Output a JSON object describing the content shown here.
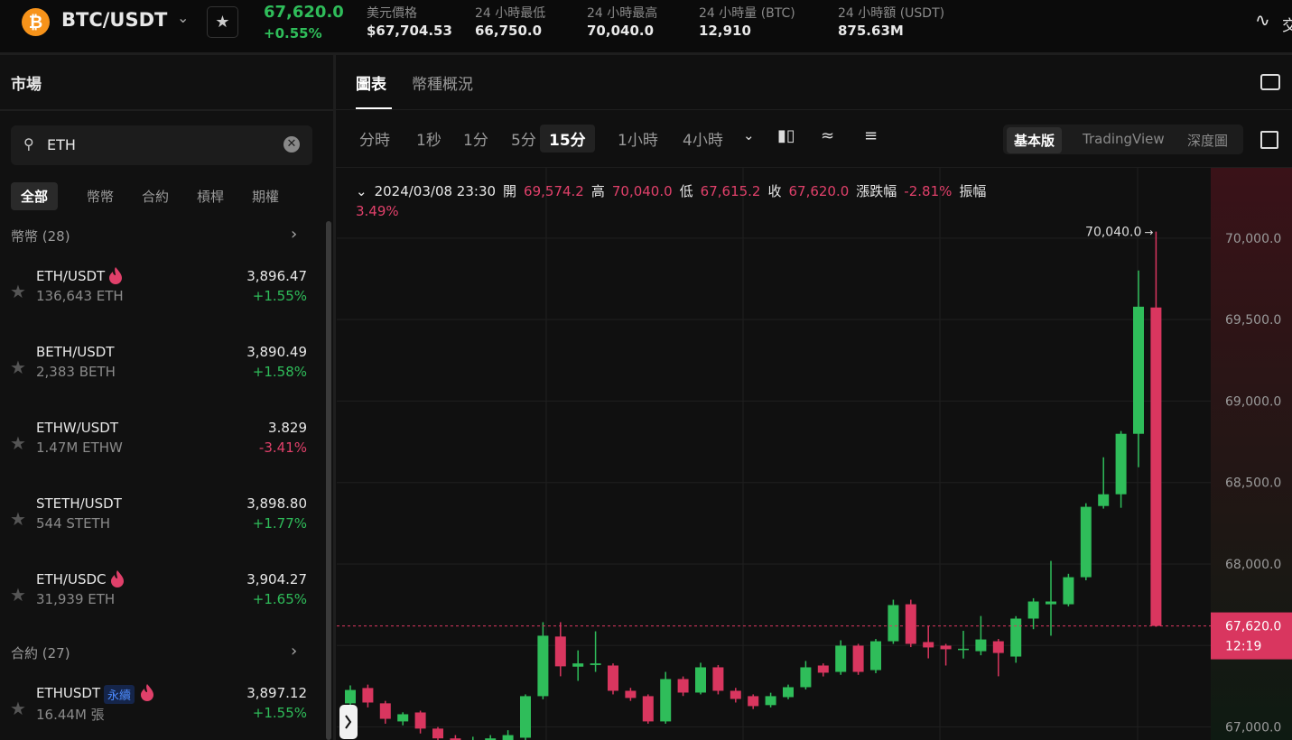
{
  "header": {
    "symbol": "BTC/USDT",
    "price": "67,620.0",
    "change": "+0.55%",
    "stats": [
      {
        "label": "美元價格",
        "value": "$67,704.53"
      },
      {
        "label": "24 小時最低",
        "value": "66,750.0"
      },
      {
        "label": "24 小時最高",
        "value": "70,040.0"
      },
      {
        "label": "24 小時量 (BTC)",
        "value": "12,910"
      },
      {
        "label": "24 小時額 (USDT)",
        "value": "875.63M"
      }
    ],
    "cut_text": "交"
  },
  "sidebar": {
    "title": "市場",
    "search": "ETH",
    "tabs": [
      "全部",
      "幣幣",
      "合約",
      "槓桿",
      "期權"
    ],
    "sections": [
      {
        "title": "幣幣 (28)",
        "items": [
          {
            "pair": "ETH/USDT",
            "volume": "136,643 ETH",
            "price": "3,896.47",
            "change": "+1.55%",
            "hot": true
          },
          {
            "pair": "BETH/USDT",
            "volume": "2,383 BETH",
            "price": "3,890.49",
            "change": "+1.58%",
            "hot": false
          },
          {
            "pair": "ETHW/USDT",
            "volume": "1.47M ETHW",
            "price": "3.829",
            "change": "-3.41%",
            "hot": false
          },
          {
            "pair": "STETH/USDT",
            "volume": "544 STETH",
            "price": "3,898.80",
            "change": "+1.77%",
            "hot": false
          },
          {
            "pair": "ETH/USDC",
            "volume": "31,939 ETH",
            "price": "3,904.27",
            "change": "+1.65%",
            "hot": true
          }
        ]
      },
      {
        "title": "合約 (27)",
        "items": [
          {
            "pair": "ETHUSDT",
            "badge": "永續",
            "volume": "16.44M 張",
            "price": "3,897.12",
            "change": "+1.55%",
            "hot": true
          }
        ]
      }
    ]
  },
  "main": {
    "tabs": [
      "圖表",
      "幣種概況"
    ],
    "intervals": [
      "分時",
      "1秒",
      "1分",
      "5分",
      "15分",
      "1小時",
      "4小時"
    ],
    "views": [
      "基本版",
      "TradingView",
      "深度圖"
    ]
  },
  "info": {
    "datetime": "2024/03/08 23:30",
    "items": [
      {
        "label": "開",
        "value": "69,574.2"
      },
      {
        "label": "高",
        "value": "70,040.0"
      },
      {
        "label": "低",
        "value": "67,615.2"
      },
      {
        "label": "收",
        "value": "67,620.0"
      },
      {
        "label": "漲跌幅",
        "value": "-2.81%"
      },
      {
        "label": "振幅",
        "value": "3.49%"
      }
    ]
  },
  "chart_data": {
    "type": "candlestick",
    "up_color": "#2fbd5a",
    "down_color": "#d9365f",
    "ylim": [
      66920,
      70420
    ],
    "yticks": [
      {
        "value": 67000,
        "label": "67,000.0"
      },
      {
        "value": 67500,
        "label": "67,500.0"
      },
      {
        "value": 68000,
        "label": "68,000.0"
      },
      {
        "value": 68500,
        "label": "68,500.0"
      },
      {
        "value": 69000,
        "label": "69,000.0"
      },
      {
        "value": 69500,
        "label": "69,500.0"
      },
      {
        "value": 70000,
        "label": "70,000.0"
      }
    ],
    "grid": true,
    "last_price": {
      "value": 67620,
      "label": "67,620.0"
    },
    "countdown": "12:19",
    "high_marker": {
      "value": 70040,
      "label": "70,040.0"
    },
    "open": [
      67145,
      67239,
      67145,
      67034,
      67089,
      66990,
      66930,
      66900,
      66910,
      66920,
      66934,
      67189,
      67555,
      67370,
      67380,
      67377,
      67222,
      67189,
      67034,
      67294,
      67211,
      67366,
      67222,
      67189,
      67134,
      67183,
      67244,
      67377,
      67338,
      67499,
      67349,
      67526,
      67753,
      67521,
      67499,
      67477,
      67465,
      67526,
      67432,
      67665,
      67753,
      67753,
      67919,
      68356,
      68428,
      68799,
      69574.2
    ],
    "high": [
      67255,
      67260,
      67160,
      67090,
      67100,
      67000,
      66950,
      66940,
      66950,
      66980,
      67200,
      67643,
      67643,
      67470,
      67587,
      67390,
      67240,
      67200,
      67338,
      67310,
      67394,
      67380,
      67240,
      67200,
      67210,
      67260,
      67405,
      67390,
      67532,
      67510,
      67540,
      67781,
      67781,
      67620,
      67510,
      67590,
      67681,
      67540,
      67680,
      67790,
      68019,
      67940,
      68373,
      68655,
      68816,
      69801,
      70040
    ],
    "low": [
      67089,
      67120,
      67020,
      67010,
      66960,
      66900,
      66890,
      66880,
      66890,
      66900,
      66920,
      67170,
      67311,
      67283,
      67338,
      67200,
      67160,
      67020,
      67020,
      67190,
      67200,
      67200,
      67150,
      67110,
      67120,
      67170,
      67230,
      67310,
      67320,
      67320,
      67330,
      67510,
      67490,
      67421,
      67377,
      67420,
      67440,
      67311,
      67394,
      67600,
      67560,
      67740,
      67900,
      68340,
      68345,
      68594,
      67615.2
    ],
    "close": [
      67227,
      67150,
      67050,
      67078,
      66990,
      66930,
      66910,
      66920,
      66930,
      66950,
      67189,
      67560,
      67372,
      67390,
      67390,
      67222,
      67178,
      67034,
      67294,
      67211,
      67366,
      67222,
      67172,
      67128,
      67189,
      67244,
      67366,
      67333,
      67499,
      67338,
      67526,
      67748,
      67510,
      67488,
      67477,
      67480,
      67537,
      67454,
      67665,
      67770,
      67770,
      67919,
      68351,
      68428,
      68799,
      69579,
      67620
    ]
  }
}
